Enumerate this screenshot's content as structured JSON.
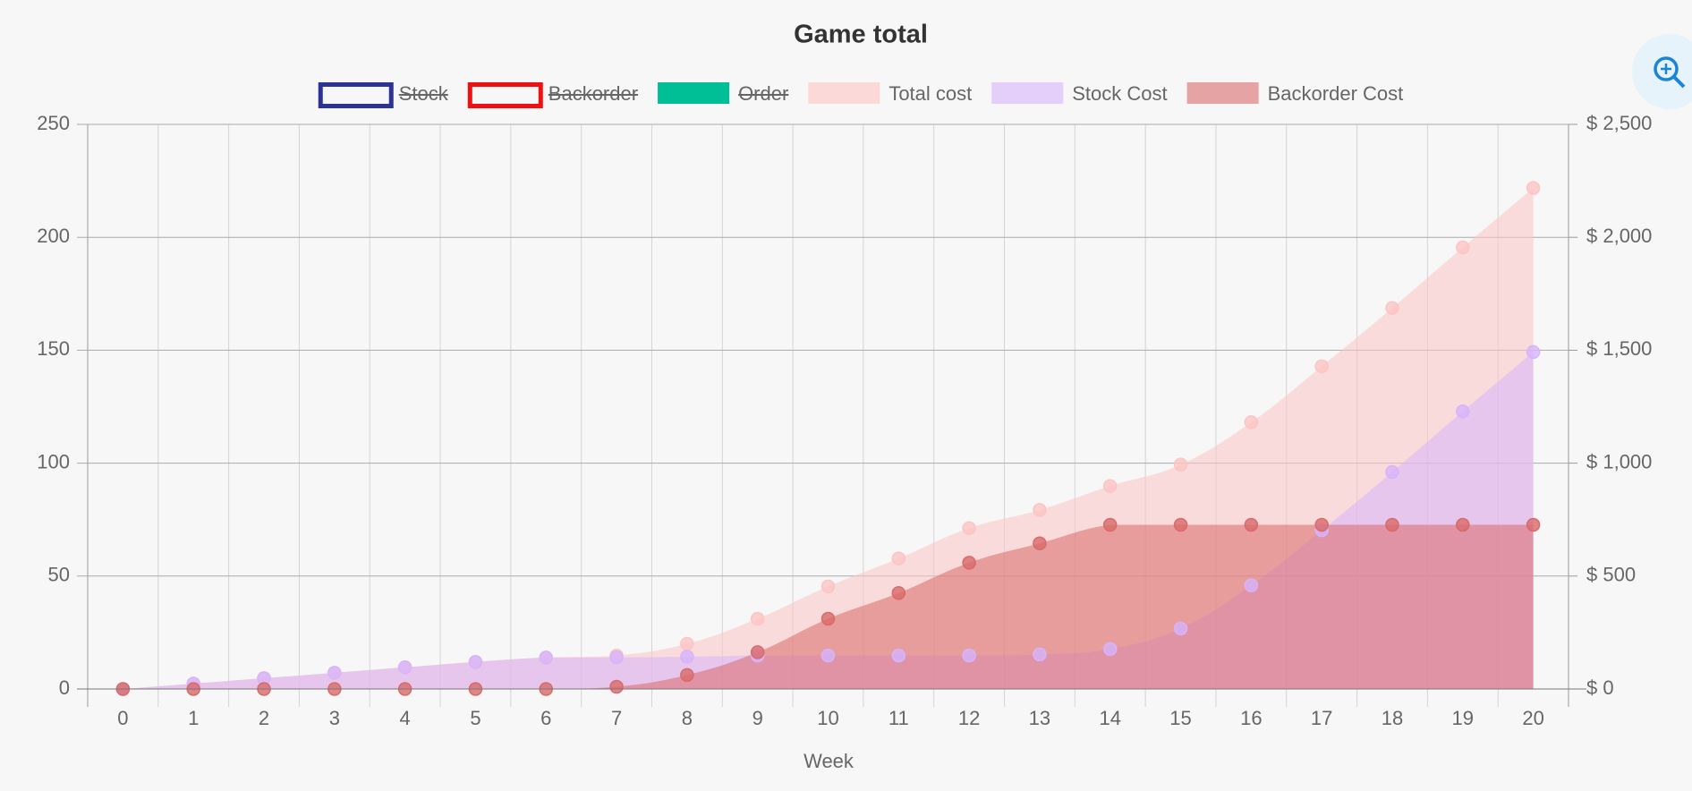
{
  "chart_data": {
    "type": "area",
    "title": "Game total",
    "x_label": "Week",
    "x": [
      0,
      1,
      2,
      3,
      4,
      5,
      6,
      7,
      8,
      9,
      10,
      11,
      12,
      13,
      14,
      15,
      16,
      17,
      18,
      19,
      20
    ],
    "ylim": [
      0,
      250
    ],
    "yticks": [
      0,
      50,
      100,
      150,
      200,
      250
    ],
    "y2lim": [
      0,
      2500
    ],
    "y2ticks": [
      {
        "value": 0,
        "label": "$ 0"
      },
      {
        "value": 500,
        "label": "$ 500"
      },
      {
        "value": 1000,
        "label": "$ 1,000"
      },
      {
        "value": 1500,
        "label": "$ 1,500"
      },
      {
        "value": 2000,
        "label": "$ 2,000"
      },
      {
        "value": 2500,
        "label": "$ 2,500"
      }
    ],
    "grid": true,
    "series": [
      {
        "name": "Stock",
        "color": "#2b3494",
        "hidden": true
      },
      {
        "name": "Backorder",
        "color": "#ee1111",
        "hidden": true
      },
      {
        "name": "Order",
        "color": "#00bf96",
        "hidden": true
      },
      {
        "name": "Total cost",
        "color": "#fdc4c4",
        "axis": "y2",
        "values": [
          0,
          24,
          48,
          72,
          96,
          120,
          139,
          148,
          200,
          311,
          454,
          578,
          712,
          793,
          899,
          994,
          1181,
          1429,
          1687,
          1955,
          2218
        ]
      },
      {
        "name": "Stock Cost",
        "color": "#d6b4fc",
        "axis": "y2",
        "values": [
          0,
          24,
          48,
          72,
          96,
          120,
          139,
          140,
          143,
          148,
          148,
          148,
          148,
          153,
          177,
          268,
          459,
          703,
          961,
          1229,
          1492
        ]
      },
      {
        "name": "Backorder Cost",
        "color": "#d86a6a",
        "axis": "y2",
        "values": [
          0,
          0,
          0,
          0,
          0,
          0,
          0,
          10,
          62,
          163,
          311,
          425,
          559,
          645,
          727,
          727,
          727,
          727,
          727,
          727,
          727
        ]
      }
    ]
  }
}
